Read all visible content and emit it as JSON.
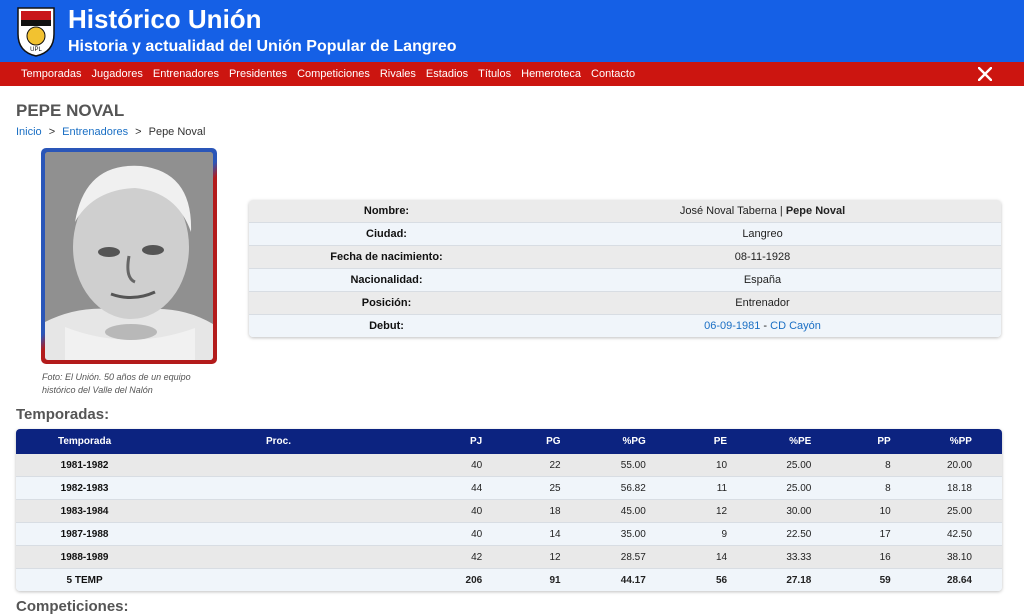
{
  "header": {
    "title": "Histórico Unión",
    "subtitle": "Historia y actualidad del Unión Popular de Langreo",
    "colors": {
      "blue": "#1560e6",
      "red": "#cc1510",
      "table_header": "#0c2380"
    },
    "logo_icon": "club-crest-icon",
    "logo_letters": "UPL"
  },
  "nav": {
    "items": [
      "Temporadas",
      "Jugadores",
      "Entrenadores",
      "Presidentes",
      "Competiciones",
      "Rivales",
      "Estadios",
      "Títulos",
      "Hemeroteca",
      "Contacto"
    ],
    "social_icon": "x-logo-icon"
  },
  "page": {
    "title": "PEPE NOVAL",
    "breadcrumb": {
      "home": "Inicio",
      "section": "Entrenadores",
      "current": "Pepe Noval",
      "sep": ">"
    },
    "photo_caption": "Foto: El Unión. 50 años de un equipo histórico del Valle del Nalón"
  },
  "info": {
    "nombre_label": "Nombre:",
    "nombre_full": "José Noval Taberna",
    "nombre_sep": " | ",
    "nombre_short": "Pepe Noval",
    "ciudad_label": "Ciudad:",
    "ciudad": "Langreo",
    "nacimiento_label": "Fecha de nacimiento:",
    "nacimiento": "08-11-1928",
    "nacionalidad_label": "Nacionalidad:",
    "nacionalidad": "España",
    "posicion_label": "Posición:",
    "posicion": "Entrenador",
    "debut_label": "Debut:",
    "debut_date": "06-09-1981",
    "debut_sep": " - ",
    "debut_rival": "CD Cayón"
  },
  "temporadas": {
    "section_title": "Temporadas:",
    "headers": [
      "Temporada",
      "Proc.",
      "PJ",
      "PG",
      "%PG",
      "PE",
      "%PE",
      "PP",
      "%PP"
    ],
    "rows": [
      [
        "1981-1982",
        "",
        "40",
        "22",
        "55.00",
        "10",
        "25.00",
        "8",
        "20.00"
      ],
      [
        "1982-1983",
        "",
        "44",
        "25",
        "56.82",
        "11",
        "25.00",
        "8",
        "18.18"
      ],
      [
        "1983-1984",
        "",
        "40",
        "18",
        "45.00",
        "12",
        "30.00",
        "10",
        "25.00"
      ],
      [
        "1987-1988",
        "",
        "40",
        "14",
        "35.00",
        "9",
        "22.50",
        "17",
        "42.50"
      ],
      [
        "1988-1989",
        "",
        "42",
        "12",
        "28.57",
        "14",
        "33.33",
        "16",
        "38.10"
      ]
    ],
    "total": [
      "5 TEMP",
      "",
      "206",
      "91",
      "44.17",
      "56",
      "27.18",
      "59",
      "28.64"
    ]
  },
  "competiciones": {
    "section_title": "Competiciones:"
  }
}
